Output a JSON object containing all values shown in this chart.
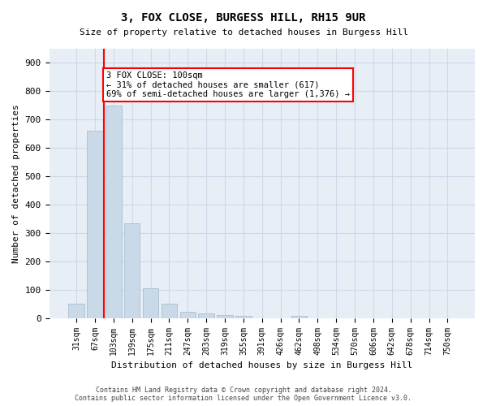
{
  "title": "3, FOX CLOSE, BURGESS HILL, RH15 9UR",
  "subtitle": "Size of property relative to detached houses in Burgess Hill",
  "xlabel": "Distribution of detached houses by size in Burgess Hill",
  "ylabel": "Number of detached properties",
  "bar_labels": [
    "31sqm",
    "67sqm",
    "103sqm",
    "139sqm",
    "175sqm",
    "211sqm",
    "247sqm",
    "283sqm",
    "319sqm",
    "355sqm",
    "391sqm",
    "426sqm",
    "462sqm",
    "498sqm",
    "534sqm",
    "570sqm",
    "606sqm",
    "642sqm",
    "678sqm",
    "714sqm",
    "750sqm"
  ],
  "bar_values": [
    50,
    660,
    750,
    335,
    105,
    50,
    22,
    15,
    10,
    8,
    0,
    0,
    8,
    0,
    0,
    0,
    0,
    0,
    0,
    0,
    0
  ],
  "bar_color": "#c9d9e8",
  "bar_edgecolor": "#a0b8cc",
  "grid_color": "#d0d8e8",
  "background_color": "#e8eef5",
  "vline_x_index": 2,
  "vline_color": "red",
  "annotation_text": "3 FOX CLOSE: 100sqm\n← 31% of detached houses are smaller (617)\n69% of semi-detached houses are larger (1,376) →",
  "annotation_box_color": "white",
  "annotation_box_edgecolor": "red",
  "ylim": [
    0,
    950
  ],
  "yticks": [
    0,
    100,
    200,
    300,
    400,
    500,
    600,
    700,
    800,
    900
  ],
  "footer1": "Contains HM Land Registry data © Crown copyright and database right 2024.",
  "footer2": "Contains public sector information licensed under the Open Government Licence v3.0."
}
